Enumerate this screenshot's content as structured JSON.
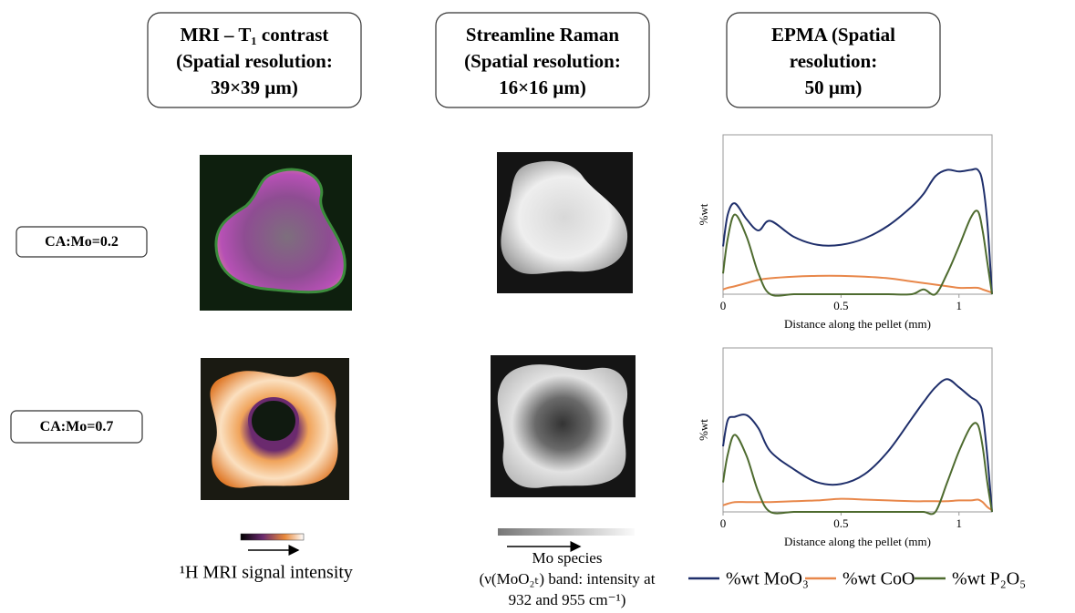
{
  "headers": [
    [
      "MRI – T₁ contrast",
      "(Spatial resolution:",
      "39×39 µm)"
    ],
    [
      "Streamline Raman",
      "(Spatial resolution:",
      "16×16 µm)"
    ],
    [
      "EPMA (Spatial",
      "resolution:",
      "50 µm)"
    ]
  ],
  "rows": [
    "CA:Mo=0.2",
    "CA:Mo=0.7"
  ],
  "mri_colorbar_caption": "¹H MRI signal intensity",
  "raman_colorbar_caption": [
    "Mo species",
    "(ν(MoO₂ₜ) band: intensity at",
    "932 and 955 cm⁻¹)"
  ],
  "chart_data": [
    {
      "type": "line",
      "xlabel": "Distance along the pellet (mm)",
      "ylabel": "%wt",
      "x": [
        0,
        0.02,
        0.05,
        0.1,
        0.15,
        0.2,
        0.3,
        0.4,
        0.5,
        0.6,
        0.7,
        0.8,
        0.85,
        0.9,
        0.95,
        1.0,
        1.05,
        1.08,
        1.1,
        1.12,
        1.14
      ],
      "xlim": [
        0,
        1.14
      ],
      "xticks": [
        0,
        0.5,
        1
      ],
      "ylim": [
        0,
        100
      ],
      "series": [
        {
          "name": "%wt MoO₃",
          "color": "#1f2f6b",
          "values": [
            30,
            50,
            57,
            47,
            40,
            46,
            36,
            31,
            31,
            35,
            43,
            55,
            63,
            74,
            78,
            77,
            78,
            78,
            70,
            45,
            0
          ]
        },
        {
          "name": "%wt CoO",
          "color": "#e8874a",
          "values": [
            3,
            4,
            5,
            7,
            9,
            10,
            11,
            11.5,
            11.5,
            11,
            10,
            8,
            7,
            6,
            5,
            4,
            4,
            4,
            3,
            2,
            1
          ]
        },
        {
          "name": "%wt P₂O₅",
          "color": "#4e6b2f",
          "values": [
            13,
            35,
            50,
            36,
            13,
            0,
            0,
            0,
            0,
            0,
            0,
            0,
            3,
            0,
            13,
            30,
            48,
            52,
            40,
            20,
            0
          ]
        }
      ]
    },
    {
      "type": "line",
      "xlabel": "Distance along the pellet (mm)",
      "ylabel": "%wt",
      "x": [
        0,
        0.02,
        0.05,
        0.1,
        0.15,
        0.2,
        0.3,
        0.4,
        0.5,
        0.6,
        0.7,
        0.8,
        0.85,
        0.9,
        0.95,
        1.0,
        1.05,
        1.08,
        1.1,
        1.12,
        1.14
      ],
      "xlim": [
        0,
        1.14
      ],
      "xticks": [
        0,
        0.5,
        1
      ],
      "ylim": [
        0,
        100
      ],
      "series": [
        {
          "color": "#1f2f6b",
          "values": [
            40,
            56,
            58,
            59,
            51,
            37,
            26,
            18,
            17,
            23,
            37,
            57,
            67,
            76,
            81,
            76,
            70,
            67,
            60,
            34,
            0
          ]
        },
        {
          "color": "#e8874a",
          "values": [
            4,
            5,
            6,
            6,
            6,
            6,
            6.5,
            7,
            8,
            7.5,
            7,
            6.5,
            6.5,
            6.5,
            6.5,
            7,
            7,
            7.5,
            6,
            3,
            1
          ]
        },
        {
          "color": "#4e6b2f",
          "values": [
            18,
            35,
            47,
            34,
            12,
            0,
            0,
            0,
            0,
            0,
            0,
            0,
            0,
            0,
            18,
            37,
            52,
            53,
            40,
            18,
            0
          ]
        }
      ]
    }
  ]
}
